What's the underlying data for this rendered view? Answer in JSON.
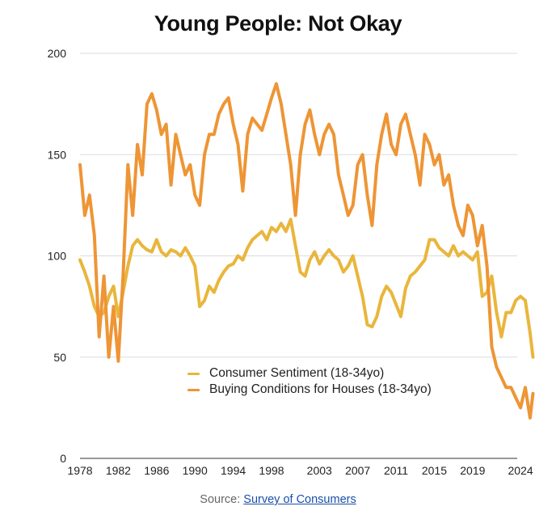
{
  "chart_data": {
    "type": "line",
    "title": "Young People: Not Okay",
    "xlabel": "",
    "ylabel": "",
    "ylim": [
      0,
      200
    ],
    "xlim": [
      1978,
      2025.5
    ],
    "yticks": [
      0,
      50,
      100,
      150,
      200
    ],
    "xticks": [
      "1978",
      "1982",
      "1986",
      "1990",
      "1994",
      "1998",
      "2003",
      "2007",
      "2011",
      "2015",
      "2019",
      "2024"
    ],
    "grid": true,
    "legend_position": "bottom-center",
    "x": [
      1978.0,
      1978.5,
      1979.0,
      1979.5,
      1980.0,
      1980.5,
      1981.0,
      1981.5,
      1982.0,
      1982.5,
      1983.0,
      1983.5,
      1984.0,
      1984.5,
      1985.0,
      1985.5,
      1986.0,
      1986.5,
      1987.0,
      1987.5,
      1988.0,
      1988.5,
      1989.0,
      1989.5,
      1990.0,
      1990.5,
      1991.0,
      1991.5,
      1992.0,
      1992.5,
      1993.0,
      1993.5,
      1994.0,
      1994.5,
      1995.0,
      1995.5,
      1996.0,
      1996.5,
      1997.0,
      1997.5,
      1998.0,
      1998.5,
      1999.0,
      1999.5,
      2000.0,
      2000.5,
      2001.0,
      2001.5,
      2002.0,
      2002.5,
      2003.0,
      2003.5,
      2004.0,
      2004.5,
      2005.0,
      2005.5,
      2006.0,
      2006.5,
      2007.0,
      2007.5,
      2008.0,
      2008.5,
      2009.0,
      2009.5,
      2010.0,
      2010.5,
      2011.0,
      2011.5,
      2012.0,
      2012.5,
      2013.0,
      2013.5,
      2014.0,
      2014.5,
      2015.0,
      2015.5,
      2016.0,
      2016.5,
      2017.0,
      2017.5,
      2018.0,
      2018.5,
      2019.0,
      2019.5,
      2020.0,
      2020.5,
      2021.0,
      2021.5,
      2022.0,
      2022.5,
      2023.0,
      2023.5,
      2024.0,
      2024.5,
      2025.0,
      2025.3
    ],
    "series": [
      {
        "name": "Consumer Sentiment (18-34yo)",
        "color": "#E9B63C",
        "values": [
          98,
          92,
          85,
          75,
          70,
          72,
          80,
          85,
          70,
          82,
          95,
          105,
          108,
          105,
          103,
          102,
          108,
          102,
          100,
          103,
          102,
          100,
          104,
          100,
          95,
          75,
          78,
          85,
          82,
          88,
          92,
          95,
          96,
          100,
          98,
          104,
          108,
          110,
          112,
          108,
          114,
          112,
          116,
          112,
          118,
          105,
          92,
          90,
          98,
          102,
          96,
          100,
          103,
          100,
          98,
          92,
          95,
          100,
          90,
          80,
          66,
          65,
          70,
          80,
          85,
          82,
          76,
          70,
          84,
          90,
          92,
          95,
          98,
          108,
          108,
          104,
          102,
          100,
          105,
          100,
          102,
          100,
          98,
          102,
          80,
          82,
          90,
          72,
          60,
          72,
          72,
          78,
          80,
          78,
          62,
          50
        ]
      },
      {
        "name": "Buying Conditions for Houses (18-34yo)",
        "color": "#EE9535",
        "values": [
          145,
          120,
          130,
          110,
          60,
          90,
          50,
          75,
          48,
          90,
          145,
          120,
          155,
          140,
          175,
          180,
          172,
          160,
          165,
          135,
          160,
          150,
          140,
          145,
          130,
          125,
          150,
          160,
          160,
          170,
          175,
          178,
          165,
          155,
          132,
          160,
          168,
          165,
          162,
          170,
          178,
          185,
          175,
          160,
          145,
          120,
          150,
          165,
          172,
          160,
          150,
          160,
          165,
          160,
          140,
          130,
          120,
          125,
          145,
          150,
          130,
          115,
          145,
          160,
          170,
          155,
          150,
          165,
          170,
          160,
          150,
          135,
          160,
          155,
          145,
          150,
          135,
          140,
          125,
          115,
          110,
          125,
          120,
          105,
          115,
          95,
          55,
          45,
          40,
          35,
          35,
          30,
          25,
          35,
          20,
          32
        ]
      }
    ]
  },
  "source": {
    "prefix": "Source:",
    "link_text": "Survey of Consumers"
  }
}
